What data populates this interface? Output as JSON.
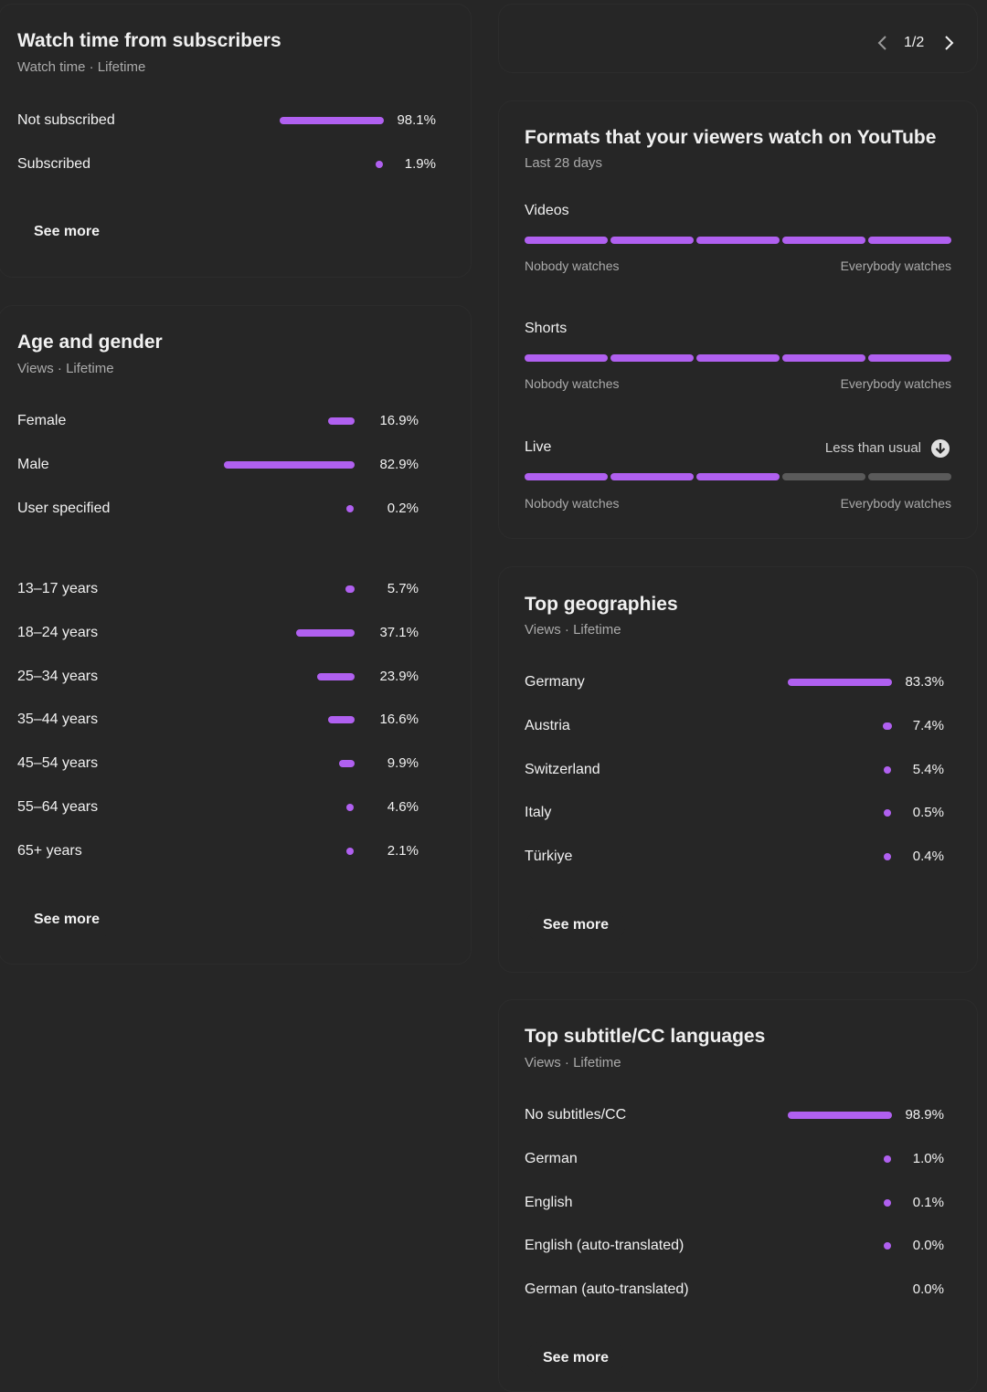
{
  "colors": {
    "accent": "#b060f0",
    "inactive": "#5a5a5a",
    "background": "#262626"
  },
  "subscribers": {
    "title": "Watch time from subscribers",
    "subtitle": "Watch time · Lifetime",
    "rows": [
      {
        "label": "Not subscribed",
        "pct": "98.1%",
        "value": 98.1
      },
      {
        "label": "Subscribed",
        "pct": "1.9%",
        "value": 1.9
      }
    ],
    "see_more": "See more"
  },
  "age_gender": {
    "title": "Age and gender",
    "subtitle": "Views · Lifetime",
    "gender": [
      {
        "label": "Female",
        "pct": "16.9%",
        "value": 16.9
      },
      {
        "label": "Male",
        "pct": "82.9%",
        "value": 82.9
      },
      {
        "label": "User specified",
        "pct": "0.2%",
        "value": 0.2
      }
    ],
    "ages": [
      {
        "label": "13–17 years",
        "pct": "5.7%",
        "value": 5.7
      },
      {
        "label": "18–24 years",
        "pct": "37.1%",
        "value": 37.1
      },
      {
        "label": "25–34 years",
        "pct": "23.9%",
        "value": 23.9
      },
      {
        "label": "35–44 years",
        "pct": "16.6%",
        "value": 16.6
      },
      {
        "label": "45–54 years",
        "pct": "9.9%",
        "value": 9.9
      },
      {
        "label": "55–64 years",
        "pct": "4.6%",
        "value": 4.6
      },
      {
        "label": "65+ years",
        "pct": "2.1%",
        "value": 2.1
      }
    ],
    "see_more": "See more"
  },
  "pager": {
    "label": "1/2",
    "prev_icon": "chevron-left-icon",
    "next_icon": "chevron-right-icon"
  },
  "formats": {
    "title": "Formats that your viewers watch on YouTube",
    "subtitle": "Last 28 days",
    "items": [
      {
        "label": "Videos",
        "level": 5,
        "of": 5,
        "note": "",
        "min_label": "Nobody watches",
        "max_label": "Everybody watches"
      },
      {
        "label": "Shorts",
        "level": 5,
        "of": 5,
        "note": "",
        "min_label": "Nobody watches",
        "max_label": "Everybody watches"
      },
      {
        "label": "Live",
        "level": 3,
        "of": 5,
        "note": "Less than usual",
        "note_icon": "arrow-down-circle-icon",
        "min_label": "Nobody watches",
        "max_label": "Everybody watches"
      }
    ]
  },
  "geographies": {
    "title": "Top geographies",
    "subtitle": "Views · Lifetime",
    "rows": [
      {
        "label": "Germany",
        "pct": "83.3%",
        "value": 83.3
      },
      {
        "label": "Austria",
        "pct": "7.4%",
        "value": 7.4
      },
      {
        "label": "Switzerland",
        "pct": "5.4%",
        "value": 5.4
      },
      {
        "label": "Italy",
        "pct": "0.5%",
        "value": 0.5
      },
      {
        "label": "Türkiye",
        "pct": "0.4%",
        "value": 0.4
      }
    ],
    "see_more": "See more"
  },
  "subtitles": {
    "title": "Top subtitle/CC languages",
    "subtitle": "Views · Lifetime",
    "rows": [
      {
        "label": "No subtitles/CC",
        "pct": "98.9%",
        "value": 98.9
      },
      {
        "label": "German",
        "pct": "1.0%",
        "value": 1.0
      },
      {
        "label": "English",
        "pct": "0.1%",
        "value": 0.1
      },
      {
        "label": "English (auto-translated)",
        "pct": "0.0%",
        "value": 0.0
      },
      {
        "label": "German (auto-translated)",
        "pct": "0.0%",
        "value": 0.0
      }
    ],
    "see_more": "See more"
  }
}
